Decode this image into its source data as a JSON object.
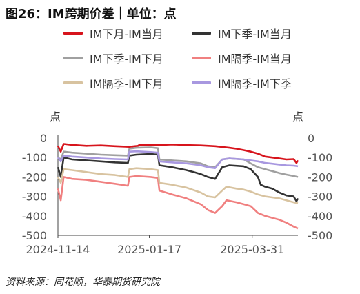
{
  "title": "图26：IM跨期价差｜单位：点",
  "source": "资料来源：同花顺，华泰期货研究院",
  "chart_data": {
    "type": "line",
    "ylabel_left": "点",
    "ylabel_right": "点",
    "ylim": [
      -500,
      0
    ],
    "yticks": [
      0,
      -100,
      -200,
      -300,
      -400,
      -500
    ],
    "x_start": "2024-11-14",
    "x_end": "2025-04-30",
    "x_tick_labels": [
      "2024-11-14",
      "2025-01-17",
      "2025-03-31"
    ],
    "legend_placement": "top",
    "series": [
      {
        "name": "IM下月-IM当月",
        "color": "#d7141c",
        "points": [
          [
            0,
            -40
          ],
          [
            2,
            -70
          ],
          [
            4,
            -30
          ],
          [
            10,
            -35
          ],
          [
            20,
            -40
          ],
          [
            30,
            -38
          ],
          [
            40,
            -42
          ],
          [
            50,
            -45
          ],
          [
            56,
            -40
          ],
          [
            57,
            -35
          ],
          [
            70,
            -36
          ],
          [
            80,
            -33
          ],
          [
            90,
            -36
          ],
          [
            100,
            -38
          ],
          [
            110,
            -42
          ],
          [
            120,
            -50
          ],
          [
            125,
            -55
          ],
          [
            130,
            -62
          ],
          [
            135,
            -70
          ],
          [
            140,
            -80
          ],
          [
            145,
            -95
          ],
          [
            150,
            -100
          ],
          [
            155,
            -105
          ],
          [
            160,
            -110
          ],
          [
            165,
            -108
          ],
          [
            167,
            -128
          ],
          [
            168,
            -115
          ]
        ]
      },
      {
        "name": "IM下季-IM当月",
        "color": "#333333",
        "points": [
          [
            0,
            -150
          ],
          [
            2,
            -200
          ],
          [
            4,
            -100
          ],
          [
            10,
            -110
          ],
          [
            20,
            -115
          ],
          [
            30,
            -120
          ],
          [
            40,
            -125
          ],
          [
            49,
            -128
          ],
          [
            50,
            -90
          ],
          [
            55,
            -85
          ],
          [
            65,
            -82
          ],
          [
            70,
            -85
          ],
          [
            71,
            -140
          ],
          [
            80,
            -150
          ],
          [
            90,
            -165
          ],
          [
            95,
            -175
          ],
          [
            100,
            -185
          ],
          [
            105,
            -200
          ],
          [
            110,
            -210
          ],
          [
            115,
            -150
          ],
          [
            120,
            -140
          ],
          [
            130,
            -145
          ],
          [
            135,
            -160
          ],
          [
            140,
            -200
          ],
          [
            142,
            -240
          ],
          [
            145,
            -250
          ],
          [
            150,
            -260
          ],
          [
            155,
            -280
          ],
          [
            160,
            -295
          ],
          [
            165,
            -300
          ],
          [
            167,
            -325
          ],
          [
            168,
            -310
          ]
        ]
      },
      {
        "name": "IM下季-IM下月",
        "color": "#a0a0a0",
        "points": [
          [
            0,
            -100
          ],
          [
            2,
            -110
          ],
          [
            4,
            -70
          ],
          [
            10,
            -75
          ],
          [
            20,
            -80
          ],
          [
            30,
            -85
          ],
          [
            40,
            -88
          ],
          [
            49,
            -90
          ],
          [
            50,
            -55
          ],
          [
            55,
            -50
          ],
          [
            65,
            -48
          ],
          [
            70,
            -52
          ],
          [
            71,
            -110
          ],
          [
            80,
            -115
          ],
          [
            90,
            -120
          ],
          [
            100,
            -130
          ],
          [
            105,
            -145
          ],
          [
            110,
            -150
          ],
          [
            115,
            -110
          ],
          [
            120,
            -105
          ],
          [
            130,
            -110
          ],
          [
            135,
            -130
          ],
          [
            140,
            -150
          ],
          [
            145,
            -160
          ],
          [
            150,
            -170
          ],
          [
            155,
            -180
          ],
          [
            160,
            -188
          ],
          [
            165,
            -195
          ],
          [
            168,
            -200
          ]
        ]
      },
      {
        "name": "IM隔季-IM当月",
        "color": "#f08080",
        "points": [
          [
            0,
            -260
          ],
          [
            2,
            -320
          ],
          [
            4,
            -200
          ],
          [
            10,
            -210
          ],
          [
            20,
            -215
          ],
          [
            30,
            -225
          ],
          [
            40,
            -235
          ],
          [
            49,
            -245
          ],
          [
            50,
            -200
          ],
          [
            55,
            -195
          ],
          [
            65,
            -200
          ],
          [
            70,
            -205
          ],
          [
            71,
            -270
          ],
          [
            80,
            -290
          ],
          [
            90,
            -310
          ],
          [
            100,
            -340
          ],
          [
            105,
            -370
          ],
          [
            110,
            -385
          ],
          [
            115,
            -350
          ],
          [
            118,
            -320
          ],
          [
            125,
            -330
          ],
          [
            130,
            -340
          ],
          [
            135,
            -350
          ],
          [
            140,
            -385
          ],
          [
            145,
            -400
          ],
          [
            150,
            -410
          ],
          [
            155,
            -420
          ],
          [
            160,
            -435
          ],
          [
            165,
            -455
          ],
          [
            168,
            -465
          ]
        ]
      },
      {
        "name": "IM隔季-IM下月",
        "color": "#d8c3a0",
        "points": [
          [
            0,
            -200
          ],
          [
            2,
            -230
          ],
          [
            4,
            -160
          ],
          [
            10,
            -165
          ],
          [
            20,
            -175
          ],
          [
            30,
            -185
          ],
          [
            40,
            -190
          ],
          [
            49,
            -200
          ],
          [
            50,
            -160
          ],
          [
            55,
            -155
          ],
          [
            65,
            -160
          ],
          [
            70,
            -165
          ],
          [
            71,
            -230
          ],
          [
            80,
            -240
          ],
          [
            90,
            -255
          ],
          [
            100,
            -280
          ],
          [
            105,
            -300
          ],
          [
            110,
            -305
          ],
          [
            115,
            -270
          ],
          [
            118,
            -250
          ],
          [
            125,
            -260
          ],
          [
            130,
            -265
          ],
          [
            135,
            -275
          ],
          [
            140,
            -290
          ],
          [
            145,
            -300
          ],
          [
            150,
            -305
          ],
          [
            155,
            -310
          ],
          [
            160,
            -320
          ],
          [
            165,
            -330
          ],
          [
            168,
            -335
          ]
        ]
      },
      {
        "name": "IM隔季-IM下季",
        "color": "#a898e0",
        "points": [
          [
            0,
            -100
          ],
          [
            2,
            -120
          ],
          [
            4,
            -90
          ],
          [
            10,
            -95
          ],
          [
            20,
            -100
          ],
          [
            30,
            -105
          ],
          [
            40,
            -108
          ],
          [
            49,
            -110
          ],
          [
            50,
            -70
          ],
          [
            55,
            -68
          ],
          [
            65,
            -72
          ],
          [
            70,
            -75
          ],
          [
            71,
            -120
          ],
          [
            80,
            -125
          ],
          [
            90,
            -130
          ],
          [
            100,
            -140
          ],
          [
            105,
            -150
          ],
          [
            110,
            -155
          ],
          [
            115,
            -110
          ],
          [
            120,
            -105
          ],
          [
            130,
            -110
          ],
          [
            135,
            -115
          ],
          [
            140,
            -120
          ],
          [
            145,
            -128
          ],
          [
            150,
            -132
          ],
          [
            155,
            -136
          ],
          [
            160,
            -140
          ],
          [
            165,
            -142
          ],
          [
            168,
            -145
          ]
        ]
      }
    ]
  }
}
